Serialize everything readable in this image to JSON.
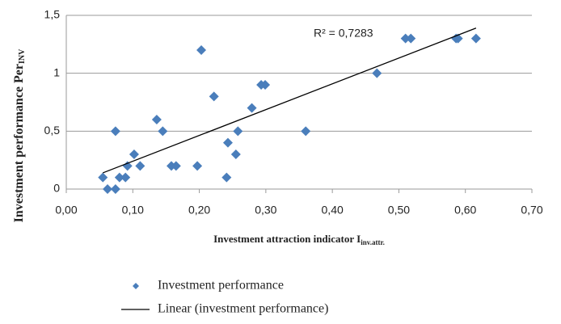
{
  "chart_data": {
    "type": "scatter",
    "x_label": {
      "text": "Investment attraction indicator I",
      "sub": "inv.attr."
    },
    "y_label": {
      "text": "Investment performance Per",
      "sub": "INV"
    },
    "annotation": "R² = 0,7283",
    "xlim": [
      0,
      0.7
    ],
    "xticks": [
      {
        "value": 0,
        "label": "0,00"
      },
      {
        "value": 0.1,
        "label": "0,10"
      },
      {
        "value": 0.2,
        "label": "0,20"
      },
      {
        "value": 0.3,
        "label": "0,30"
      },
      {
        "value": 0.4,
        "label": "0,40"
      },
      {
        "value": 0.5,
        "label": "0,50"
      },
      {
        "value": 0.6,
        "label": "0,60"
      },
      {
        "value": 0.7,
        "label": "0,70"
      }
    ],
    "ylim": [
      0,
      1.5
    ],
    "yticks": [
      0,
      {
        "value": 0.5,
        "label": "0,5"
      },
      1,
      {
        "value": 1.5,
        "label": "1,5"
      }
    ],
    "grid": true,
    "series": [
      {
        "name": "Investment performance",
        "color": "#4a7ebb",
        "marker": "diamond",
        "x": [
          0.055,
          0.062,
          0.074,
          0.074,
          0.08,
          0.089,
          0.092,
          0.102,
          0.111,
          0.136,
          0.145,
          0.158,
          0.165,
          0.197,
          0.203,
          0.222,
          0.241,
          0.243,
          0.255,
          0.258,
          0.279,
          0.293,
          0.299,
          0.36,
          0.467,
          0.51,
          0.518,
          0.586,
          0.589,
          0.616
        ],
        "values": [
          0.1,
          0,
          0.5,
          0,
          0.1,
          0.1,
          0.2,
          0.3,
          0.2,
          0.6,
          0.5,
          0.2,
          0.2,
          0.2,
          1.2,
          0.8,
          0.1,
          0.4,
          0.3,
          0.5,
          0.7,
          0.9,
          0.9,
          0.5,
          1.0,
          1.3,
          1.3,
          1.3,
          1.3,
          1.3
        ]
      },
      {
        "name": "Linear (investment performance)",
        "color": "#000000",
        "marker": "line",
        "x": [
          0.055,
          0.616
        ],
        "values": [
          0.14,
          1.39
        ]
      }
    ]
  }
}
